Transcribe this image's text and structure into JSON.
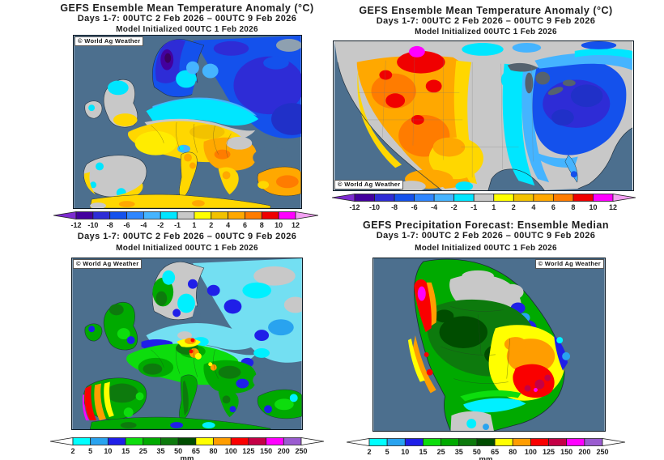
{
  "branding": {
    "watermark": "© World Ag Weather"
  },
  "panels": {
    "europe_temp": {
      "title": "GEFS Ensemble Mean Temperature Anomaly (°C)",
      "subtitle": "Days 1-7: 00UTC 2 Feb 2026 – 00UTC 9 Feb 2026",
      "init_line": "Model Initialized 00UTC 1 Feb 2026"
    },
    "us_temp": {
      "title": "GEFS Ensemble Mean Temperature Anomaly (°C)",
      "subtitle": "Days 1-7: 00UTC 2 Feb 2026 – 00UTC 9 Feb 2026",
      "init_line": "Model Initialized 00UTC 1 Feb 2026"
    },
    "europe_precip": {
      "subtitle": "Days 1-7: 00UTC 2 Feb 2026 – 00UTC 9 Feb 2026",
      "init_line": "Model Initialized 00UTC 1 Feb 2026"
    },
    "sa_precip": {
      "title": "GEFS Precipitation Forecast: Ensemble Median",
      "subtitle": "Days 1-7: 00UTC 2 Feb 2026 – 00UTC 9 Feb 2026",
      "init_line": "Model Initialized 00UTC 1 Feb 2026"
    }
  },
  "colorbars": {
    "temperature": {
      "unit": "",
      "tick_labels": [
        "-12",
        "-10",
        "-8",
        "-6",
        "-4",
        "-2",
        "-1",
        "1",
        "2",
        "4",
        "6",
        "8",
        "10",
        "12"
      ],
      "segments": [
        "#43009e",
        "#2e2cd6",
        "#1451ec",
        "#2e86ff",
        "#45b4ff",
        "#00e6ff",
        "#c8c8c8",
        "#ffff00",
        "#f2c200",
        "#ffa800",
        "#ff7c00",
        "#f00000",
        "#ff00ff"
      ],
      "arrow_left": "#7d2bd0",
      "arrow_right": "#f2a0f2"
    },
    "precipitation": {
      "unit": "mm",
      "tick_labels": [
        "2",
        "5",
        "10",
        "15",
        "25",
        "35",
        "50",
        "65",
        "80",
        "100",
        "125",
        "150",
        "200",
        "250"
      ],
      "segments": [
        "#00ffff",
        "#29a3ef",
        "#1f1fe8",
        "#0ddd0d",
        "#00aa00",
        "#0d7a0d",
        "#004d00",
        "#ffff00",
        "#ff9d00",
        "#fa0000",
        "#c40045",
        "#ff00ff",
        "#9a5cd0"
      ],
      "arrow_left": "#ffffff",
      "arrow_right": "#ffffff"
    }
  },
  "map_colors": {
    "sea": "#4c6f8e",
    "neutral_gray": "#c8c8c8",
    "lake": "#55626e"
  }
}
